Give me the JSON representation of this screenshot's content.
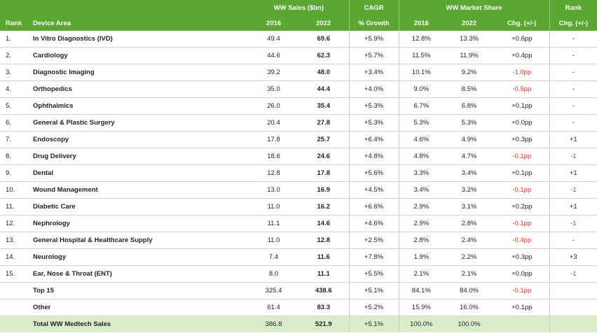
{
  "header": {
    "rank": "Rank",
    "device_area": "Device Area",
    "ww_sales": "WW Sales ($bn)",
    "cagr": "CAGR",
    "cagr_sub": "% Growth",
    "market_share": "WW Market Share",
    "rank_chg": "Rank",
    "rank_chg_sub": "Chg. (+/-)",
    "year_2016": "2016",
    "year_2022": "2022",
    "chg": "Chg. (+/-)"
  },
  "rows": [
    {
      "rank": "1.",
      "area": "In Vitro Diagnostics (IVD)",
      "s16": "49.4",
      "s22": "69.6",
      "cagr": "+5.9%",
      "m16": "12.8%",
      "m22": "13.3%",
      "chg": "+0.6pp",
      "rchg": "-"
    },
    {
      "rank": "2.",
      "area": "Cardiology",
      "s16": "44.6",
      "s22": "62.3",
      "cagr": "+5.7%",
      "m16": "11.5%",
      "m22": "11.9%",
      "chg": "+0.4pp",
      "rchg": "-"
    },
    {
      "rank": "3.",
      "area": "Diagnostic Imaging",
      "s16": "39.2",
      "s22": "48.0",
      "cagr": "+3.4%",
      "m16": "10.1%",
      "m22": "9.2%",
      "chg": "-1.0pp",
      "rchg": "-"
    },
    {
      "rank": "4.",
      "area": "Orthopedics",
      "s16": "35.0",
      "s22": "44.4",
      "cagr": "+4.0%",
      "m16": "9.0%",
      "m22": "8.5%",
      "chg": "-0.5pp",
      "rchg": "-"
    },
    {
      "rank": "5.",
      "area": "Ophthalmics",
      "s16": "26.0",
      "s22": "35.4",
      "cagr": "+5.3%",
      "m16": "6.7%",
      "m22": "6.8%",
      "chg": "+0.1pp",
      "rchg": "-"
    },
    {
      "rank": "6.",
      "area": "General & Plastic Surgery",
      "s16": "20.4",
      "s22": "27.8",
      "cagr": "+5.3%",
      "m16": "5.3%",
      "m22": "5.3%",
      "chg": "+0.0pp",
      "rchg": "-"
    },
    {
      "rank": "7.",
      "area": "Endoscopy",
      "s16": "17.8",
      "s22": "25.7",
      "cagr": "+6.4%",
      "m16": "4.6%",
      "m22": "4.9%",
      "chg": "+0.3pp",
      "rchg": "+1"
    },
    {
      "rank": "8.",
      "area": "Drug Delivery",
      "s16": "18.6",
      "s22": "24.6",
      "cagr": "+4.8%",
      "m16": "4.8%",
      "m22": "4.7%",
      "chg": "-0.1pp",
      "rchg": "-1"
    },
    {
      "rank": "9.",
      "area": "Dental",
      "s16": "12.8",
      "s22": "17.8",
      "cagr": "+5.6%",
      "m16": "3.3%",
      "m22": "3.4%",
      "chg": "+0.1pp",
      "rchg": "+1"
    },
    {
      "rank": "10.",
      "area": "Wound Management",
      "s16": "13.0",
      "s22": "16.9",
      "cagr": "+4.5%",
      "m16": "3.4%",
      "m22": "3.2%",
      "chg": "-0.1pp",
      "rchg": "-1"
    },
    {
      "rank": "11.",
      "area": "Diabetic Care",
      "s16": "11.0",
      "s22": "16.2",
      "cagr": "+6.6%",
      "m16": "2.9%",
      "m22": "3.1%",
      "chg": "+0.2pp",
      "rchg": "+1"
    },
    {
      "rank": "12.",
      "area": "Nephrology",
      "s16": "11.1",
      "s22": "14.6",
      "cagr": "+4.6%",
      "m16": "2.9%",
      "m22": "2.8%",
      "chg": "-0.1pp",
      "rchg": "-1"
    },
    {
      "rank": "13.",
      "area": "General Hospital & Healthcare Supply",
      "s16": "11.0",
      "s22": "12.8",
      "cagr": "+2.5%",
      "m16": "2.8%",
      "m22": "2.4%",
      "chg": "-0.4pp",
      "rchg": "-"
    },
    {
      "rank": "14.",
      "area": "Neurology",
      "s16": "7.4",
      "s22": "11.6",
      "cagr": "+7.8%",
      "m16": "1.9%",
      "m22": "2.2%",
      "chg": "+0.3pp",
      "rchg": "+3"
    },
    {
      "rank": "15.",
      "area": "Ear, Nose & Throat (ENT)",
      "s16": "8.0",
      "s22": "11.1",
      "cagr": "+5.5%",
      "m16": "2.1%",
      "m22": "2.1%",
      "chg": "+0.0pp",
      "rchg": "-1"
    },
    {
      "rank": "",
      "area": "Top 15",
      "s16": "325.4",
      "s22": "438.6",
      "cagr": "+5.1%",
      "m16": "84.1%",
      "m22": "84.0%",
      "chg": "-0.1pp",
      "rchg": ""
    },
    {
      "rank": "",
      "area": "Other",
      "s16": "61.4",
      "s22": "83.3",
      "cagr": "+5.2%",
      "m16": "15.9%",
      "m22": "16.0%",
      "chg": "+0.1pp",
      "rchg": ""
    }
  ],
  "total": {
    "area": "Total WW Medtech Sales",
    "s16": "386.8",
    "s22": "521.9",
    "cagr": "+5.1%",
    "m16": "100.0%",
    "m22": "100.0%",
    "chg": "",
    "rchg": ""
  },
  "colors": {
    "header_bg": "#5aa832",
    "total_bg": "#d9edcb",
    "negative": "#e0302b"
  }
}
